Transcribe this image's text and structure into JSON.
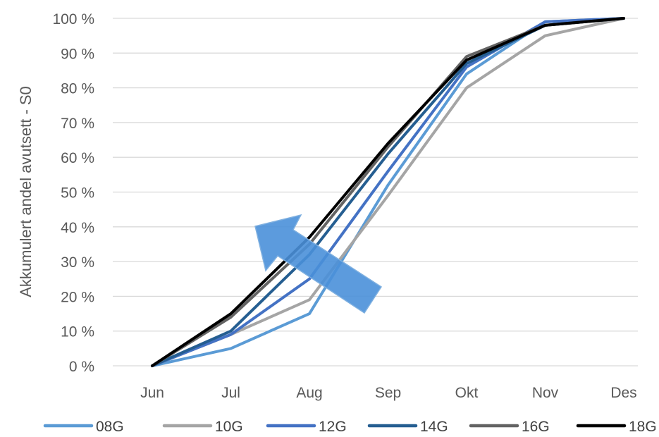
{
  "chart_data": {
    "type": "line",
    "title": "",
    "xlabel": "",
    "ylabel": "Akkumulert andel avutsett - S0",
    "categories": [
      "Jun",
      "Jul",
      "Aug",
      "Sep",
      "Okt",
      "Nov",
      "Des"
    ],
    "ylim": [
      0,
      100
    ],
    "yticks": [
      "0 %",
      "10 %",
      "20 %",
      "30 %",
      "40 %",
      "50 %",
      "60 %",
      "70 %",
      "80 %",
      "90 %",
      "100 %"
    ],
    "grid": true,
    "legend_position": "bottom",
    "series": [
      {
        "name": "08G",
        "color": "#5b9bd5",
        "values": [
          0,
          5,
          15,
          52,
          84,
          99,
          100
        ]
      },
      {
        "name": "10G",
        "color": "#a5a5a5",
        "values": [
          0,
          9,
          19,
          49,
          80,
          95,
          100
        ]
      },
      {
        "name": "12G",
        "color": "#4472c4",
        "values": [
          0,
          9,
          25,
          56,
          86,
          99,
          100
        ]
      },
      {
        "name": "14G",
        "color": "#255e91",
        "values": [
          0,
          10,
          32,
          61,
          87,
          98,
          100
        ]
      },
      {
        "name": "16G",
        "color": "#636363",
        "values": [
          0,
          14,
          35,
          63,
          89,
          98,
          100
        ]
      },
      {
        "name": "18G",
        "color": "#000000",
        "values": [
          0,
          15,
          37,
          64,
          88,
          98,
          100
        ]
      }
    ],
    "annotation": {
      "type": "arrow",
      "meaning": "trend-direction",
      "color": "#4a90d9"
    }
  }
}
